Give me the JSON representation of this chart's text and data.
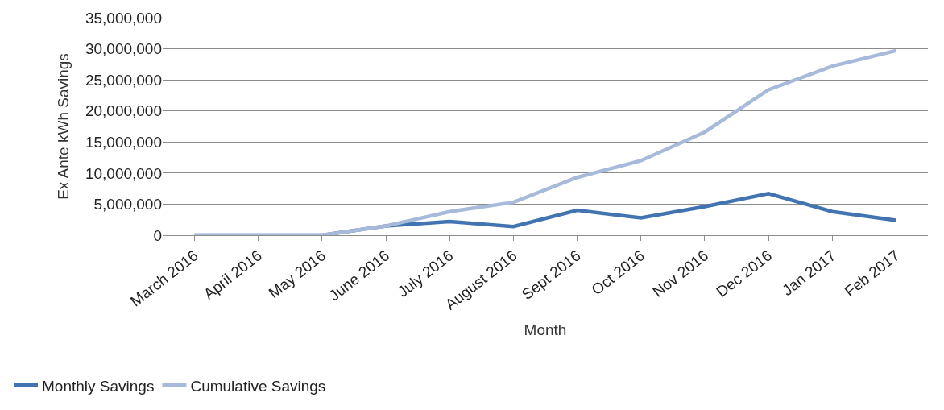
{
  "chart_data": {
    "type": "line",
    "xlabel": "Month",
    "ylabel": "Ex Ante kWh Savings",
    "categories": [
      "March 2016",
      "April 2016",
      "May 2016",
      "June 2016",
      "July 2016",
      "August 2016",
      "Sept 2016",
      "Oct 2016",
      "Nov 2016",
      "Dec 2016",
      "Jan 2017",
      "Feb 2017"
    ],
    "series": [
      {
        "name": "Monthly Savings",
        "color": "#4174b0",
        "values": [
          0,
          0,
          0,
          1500000,
          2200000,
          1400000,
          4000000,
          2800000,
          4600000,
          6700000,
          3800000,
          2400000
        ]
      },
      {
        "name": "Cumulative Savings",
        "color": "#a7bad9",
        "values": [
          0,
          0,
          0,
          1500000,
          3800000,
          5300000,
          9300000,
          12000000,
          16600000,
          23400000,
          27200000,
          29700000
        ]
      }
    ],
    "ylim": [
      0,
      35000000
    ],
    "yticks": [
      {
        "value": 0,
        "label": "0"
      },
      {
        "value": 5000000,
        "label": "5,000,000"
      },
      {
        "value": 10000000,
        "label": "10,000,000"
      },
      {
        "value": 15000000,
        "label": "15,000,000"
      },
      {
        "value": 20000000,
        "label": "20,000,000"
      },
      {
        "value": 25000000,
        "label": "25,000,000"
      },
      {
        "value": 30000000,
        "label": "30,000,000"
      },
      {
        "value": 35000000,
        "label": "35,000,000"
      }
    ],
    "grid": "y",
    "legend": "bottom left",
    "marker": "none",
    "line_style": "solid"
  }
}
